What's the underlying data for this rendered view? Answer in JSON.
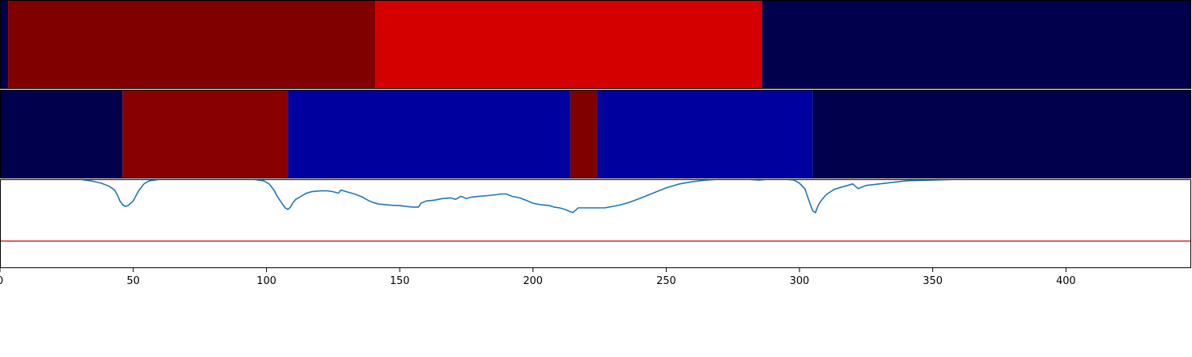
{
  "chart_data": [
    {
      "type": "heatmap",
      "xlim": [
        0,
        447
      ],
      "segments": [
        {
          "start": 0,
          "end": 3,
          "color": "#00004c"
        },
        {
          "start": 3,
          "end": 141,
          "color": "#800000"
        },
        {
          "start": 141,
          "end": 286,
          "color": "#d40000"
        },
        {
          "start": 286,
          "end": 447,
          "color": "#00004c"
        }
      ]
    },
    {
      "type": "heatmap",
      "xlim": [
        0,
        447
      ],
      "segments": [
        {
          "start": 0,
          "end": 46,
          "color": "#00004c"
        },
        {
          "start": 46,
          "end": 108,
          "color": "#880000"
        },
        {
          "start": 108,
          "end": 214,
          "color": "#00009e"
        },
        {
          "start": 214,
          "end": 224,
          "color": "#800000"
        },
        {
          "start": 224,
          "end": 305,
          "color": "#00009e"
        },
        {
          "start": 305,
          "end": 447,
          "color": "#00004c"
        }
      ]
    },
    {
      "type": "line",
      "xlim": [
        0,
        447
      ],
      "ylim": [
        -0.15,
        1.0
      ],
      "xticks": [
        0,
        50,
        100,
        150,
        200,
        250,
        300,
        350,
        400
      ],
      "line_color": "#1f77b4",
      "threshold": {
        "value": 0.2,
        "color": "#d62728"
      },
      "x": [
        0,
        10,
        20,
        30,
        34,
        38,
        41,
        43,
        44,
        45,
        46,
        47,
        48,
        50,
        52,
        54,
        56,
        60,
        63,
        65,
        67,
        70,
        75,
        80,
        85,
        90,
        95,
        99,
        100,
        101,
        103,
        104,
        105,
        106,
        107,
        108,
        109,
        110,
        111,
        113,
        115,
        117,
        120,
        123,
        125,
        127,
        128,
        130,
        133,
        136,
        138,
        140,
        142,
        145,
        148,
        150,
        152,
        155,
        157,
        158,
        160,
        163,
        166,
        169,
        171,
        173,
        175,
        177,
        180,
        183,
        186,
        188,
        190,
        192,
        195,
        198,
        200,
        203,
        206,
        208,
        210,
        212,
        214,
        215,
        217,
        220,
        224,
        227,
        230,
        233,
        236,
        240,
        245,
        250,
        255,
        260,
        265,
        270,
        275,
        280,
        285,
        288,
        290,
        295,
        298,
        300,
        302,
        303,
        304,
        305,
        306,
        307,
        308,
        310,
        313,
        316,
        318,
        320,
        322,
        325,
        330,
        340,
        350,
        360,
        370,
        380,
        390,
        400,
        410,
        420,
        430,
        440,
        447
      ],
      "y": [
        1.0,
        1.0,
        1.0,
        1.0,
        0.98,
        0.95,
        0.91,
        0.86,
        0.8,
        0.72,
        0.67,
        0.65,
        0.66,
        0.72,
        0.85,
        0.94,
        0.98,
        1.0,
        1.0,
        1.0,
        1.0,
        1.0,
        1.0,
        1.0,
        1.0,
        1.0,
        1.0,
        0.98,
        0.96,
        0.94,
        0.85,
        0.78,
        0.73,
        0.68,
        0.63,
        0.61,
        0.64,
        0.7,
        0.74,
        0.78,
        0.82,
        0.84,
        0.85,
        0.85,
        0.84,
        0.82,
        0.86,
        0.84,
        0.81,
        0.77,
        0.73,
        0.7,
        0.68,
        0.67,
        0.66,
        0.66,
        0.65,
        0.64,
        0.64,
        0.69,
        0.72,
        0.73,
        0.75,
        0.76,
        0.74,
        0.78,
        0.75,
        0.77,
        0.78,
        0.79,
        0.8,
        0.81,
        0.81,
        0.78,
        0.76,
        0.72,
        0.69,
        0.67,
        0.66,
        0.64,
        0.63,
        0.61,
        0.58,
        0.57,
        0.63,
        0.63,
        0.63,
        0.63,
        0.65,
        0.67,
        0.7,
        0.75,
        0.82,
        0.89,
        0.94,
        0.97,
        0.99,
        1.0,
        1.0,
        1.0,
        0.99,
        1.0,
        1.0,
        1.0,
        0.99,
        0.95,
        0.88,
        0.78,
        0.68,
        0.59,
        0.57,
        0.66,
        0.72,
        0.8,
        0.87,
        0.9,
        0.92,
        0.94,
        0.88,
        0.92,
        0.94,
        0.98,
        0.99,
        1.0,
        1.0,
        1.0,
        1.0,
        1.0,
        1.0,
        1.0,
        1.0,
        1.0,
        1.0
      ]
    }
  ]
}
